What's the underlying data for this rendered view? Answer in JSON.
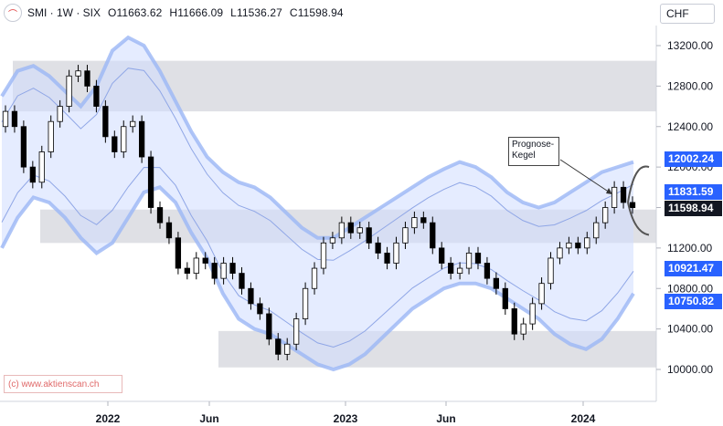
{
  "header": {
    "symbol": "SMI · 1W · SIX",
    "open_label": "O",
    "open": "11663.62",
    "high_label": "H",
    "high": "11666.09",
    "low_label": "L",
    "low": "11536.27",
    "close_label": "C",
    "close": "11598.94",
    "currency": "CHF"
  },
  "watermark": "(c) www.aktienscan.ch",
  "callout": "Prognose-\nKegel",
  "price_labels": {
    "upper_band": "12002.24",
    "upper_inner": "11831.59",
    "last": "11598.94",
    "lower_inner": "10921.47",
    "lower_band": "10750.82"
  },
  "colors": {
    "bull": "#ffffff",
    "bear": "#000000",
    "band_fill": "#cfdcff",
    "band_edge": "#9bb6f5",
    "zone": "#c9ccd3",
    "label_blue": "#2962ff",
    "label_black": "#131722"
  },
  "chart_data": {
    "type": "candlestick",
    "y_ticks": [
      "13200.00",
      "12800.00",
      "12400.00",
      "12000.00",
      "11600.00",
      "11200.00",
      "10800.00",
      "10400.00",
      "10000.00"
    ],
    "x_ticks": [
      "2022",
      "Jun",
      "2023",
      "Jun",
      "2024"
    ],
    "ylim": [
      9800,
      13400
    ],
    "support_resistance_zones": [
      [
        12550,
        13050
      ],
      [
        11250,
        11580
      ],
      [
        10020,
        10380
      ]
    ],
    "channel_upper_outer": [
      12700,
      12950,
      13000,
      12900,
      12750,
      12600,
      12800,
      13150,
      13280,
      13200,
      12950,
      12650,
      12350,
      12100,
      11950,
      11850,
      11800,
      11700,
      11550,
      11400,
      11300,
      11300,
      11400,
      11500,
      11600,
      11700,
      11800,
      11900,
      11980,
      12050,
      12000,
      11900,
      11750,
      11650,
      11600,
      11650,
      11750,
      11850,
      11950,
      12000,
      12050
    ],
    "channel_lower_outer": [
      11200,
      11500,
      11700,
      11650,
      11500,
      11300,
      11150,
      11250,
      11500,
      11750,
      11800,
      11650,
      11350,
      11100,
      10750,
      10500,
      10400,
      10350,
      10250,
      10150,
      10050,
      10000,
      10050,
      10150,
      10300,
      10450,
      10600,
      10700,
      10800,
      10850,
      10850,
      10800,
      10700,
      10600,
      10500,
      10350,
      10250,
      10200,
      10300,
      10500,
      10750
    ],
    "last_close": 11598.94,
    "candles": [
      [
        12400,
        12550
      ],
      [
        12550,
        12400
      ],
      [
        12400,
        12000
      ],
      [
        12000,
        11850
      ],
      [
        11850,
        12150
      ],
      [
        12150,
        12450
      ],
      [
        12450,
        12600
      ],
      [
        12600,
        12900
      ],
      [
        12900,
        12950
      ],
      [
        12950,
        12800
      ],
      [
        12800,
        12600
      ],
      [
        12600,
        12300
      ],
      [
        12300,
        12150
      ],
      [
        12150,
        12400
      ],
      [
        12400,
        12450
      ],
      [
        12450,
        12100
      ],
      [
        12100,
        11600
      ],
      [
        11600,
        11450
      ],
      [
        11450,
        11300
      ],
      [
        11300,
        11000
      ],
      [
        11000,
        10950
      ],
      [
        10950,
        11100
      ],
      [
        11100,
        11050
      ],
      [
        11050,
        10900
      ],
      [
        10900,
        11050
      ],
      [
        11050,
        10950
      ],
      [
        10950,
        10800
      ],
      [
        10800,
        10650
      ],
      [
        10650,
        10550
      ],
      [
        10550,
        10300
      ],
      [
        10300,
        10150
      ],
      [
        10150,
        10250
      ],
      [
        10250,
        10500
      ],
      [
        10500,
        10800
      ],
      [
        10800,
        11000
      ],
      [
        11000,
        11250
      ],
      [
        11250,
        11300
      ],
      [
        11300,
        11450
      ],
      [
        11450,
        11350
      ],
      [
        11350,
        11400
      ],
      [
        11400,
        11250
      ],
      [
        11250,
        11150
      ],
      [
        11150,
        11050
      ],
      [
        11050,
        11250
      ],
      [
        11250,
        11400
      ],
      [
        11400,
        11500
      ],
      [
        11500,
        11450
      ],
      [
        11450,
        11200
      ],
      [
        11200,
        11050
      ],
      [
        11050,
        10950
      ],
      [
        10950,
        11000
      ],
      [
        11000,
        11150
      ],
      [
        11150,
        11050
      ],
      [
        11050,
        10900
      ],
      [
        10900,
        10800
      ],
      [
        10800,
        10600
      ],
      [
        10600,
        10350
      ],
      [
        10350,
        10450
      ],
      [
        10450,
        10650
      ],
      [
        10650,
        10850
      ],
      [
        10850,
        11100
      ],
      [
        11100,
        11200
      ],
      [
        11200,
        11250
      ],
      [
        11250,
        11200
      ],
      [
        11200,
        11300
      ],
      [
        11300,
        11450
      ],
      [
        11450,
        11600
      ],
      [
        11600,
        11800
      ],
      [
        11800,
        11650
      ],
      [
        11650,
        11599
      ]
    ]
  }
}
